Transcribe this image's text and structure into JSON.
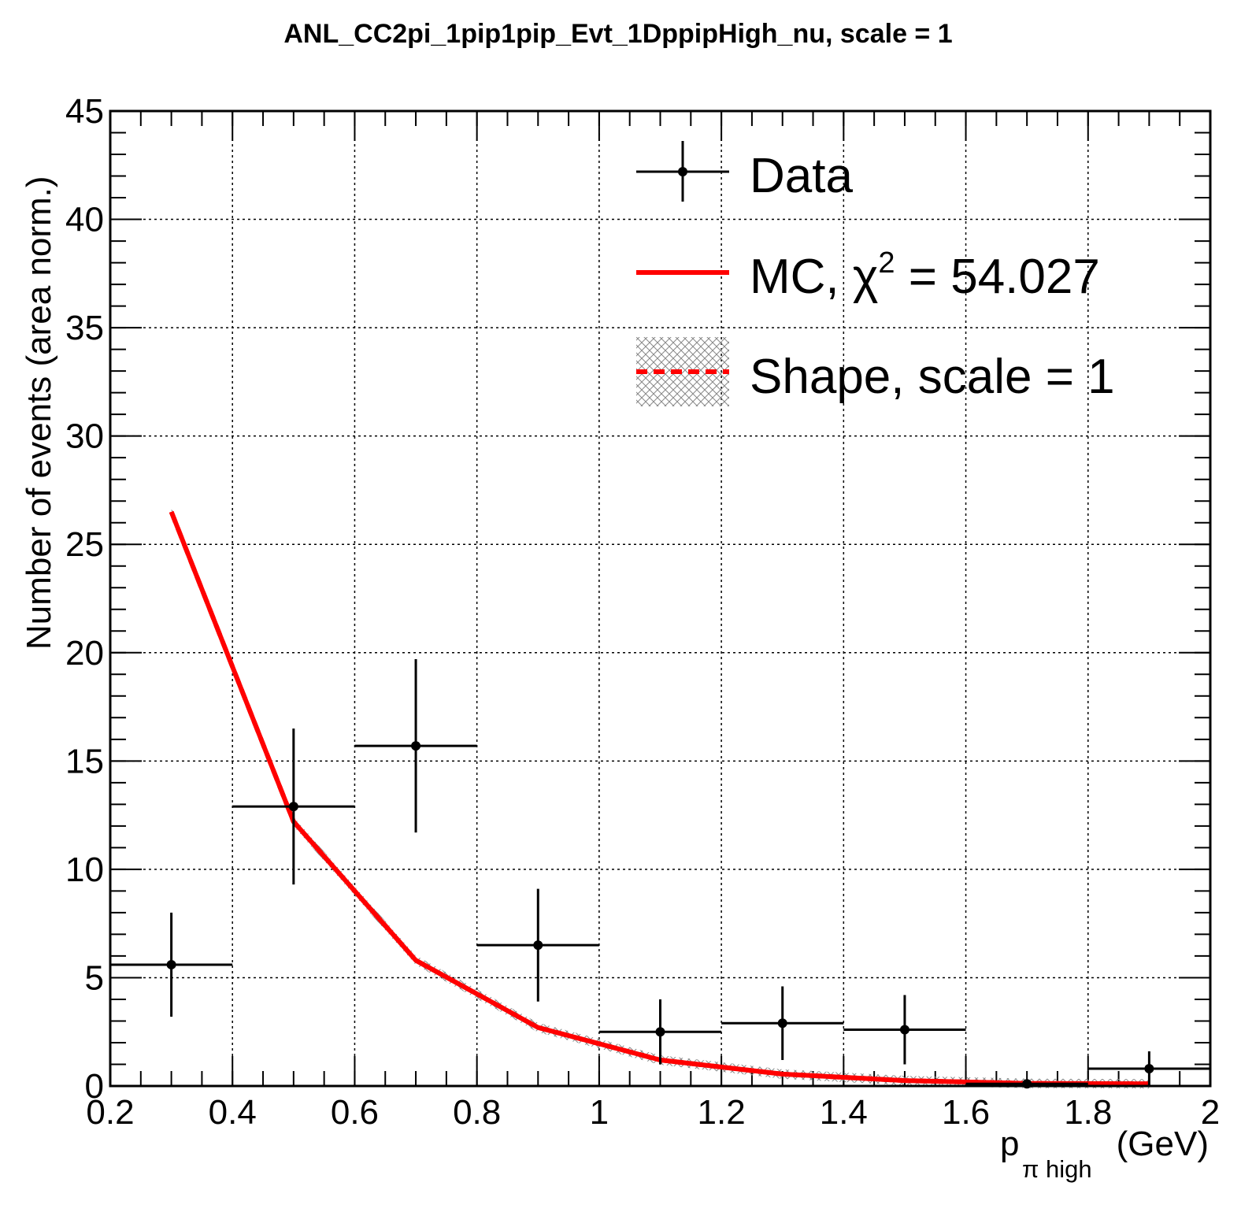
{
  "chart_data": {
    "type": "line",
    "title": "ANL_CC2pi_1pip1pip_Evt_1DppipHigh_nu, scale = 1",
    "xlabel": {
      "main": "p",
      "sub": "π high",
      "unit": "(GeV)"
    },
    "ylabel": "Number of events (area norm.)",
    "xlim": [
      0.2,
      2.0
    ],
    "ylim": [
      0,
      45
    ],
    "grid": true,
    "legend_position": "top-right",
    "x_ticks": [
      "0.2",
      "0.4",
      "0.6",
      "0.8",
      "1",
      "1.2",
      "1.4",
      "1.6",
      "1.8",
      "2"
    ],
    "y_ticks": [
      "0",
      "5",
      "10",
      "15",
      "20",
      "25",
      "30",
      "35",
      "40",
      "45"
    ],
    "series": [
      {
        "name": "Data",
        "kind": "points_with_errors",
        "color": "#000000",
        "x": [
          0.3,
          0.5,
          0.7,
          0.9,
          1.1,
          1.3,
          1.5,
          1.7,
          1.9
        ],
        "xerr": [
          0.1,
          0.1,
          0.1,
          0.1,
          0.1,
          0.1,
          0.1,
          0.1,
          0.1
        ],
        "y": [
          5.6,
          12.9,
          15.7,
          6.5,
          2.5,
          2.9,
          2.6,
          0.1,
          0.8
        ],
        "yerr": [
          2.4,
          3.6,
          4.0,
          2.6,
          1.5,
          1.7,
          1.6,
          0.1,
          0.8
        ]
      },
      {
        "name": "MC, χ² = 54.027",
        "legend_main": "MC, χ",
        "legend_sup": "2",
        "legend_tail": " = 54.027",
        "kind": "line",
        "color": "#ff0000",
        "x": [
          0.3,
          0.5,
          0.7,
          0.9,
          1.1,
          1.3,
          1.5,
          1.7,
          1.9
        ],
        "y": [
          26.5,
          12.2,
          5.8,
          2.7,
          1.2,
          0.55,
          0.25,
          0.12,
          0.1
        ]
      },
      {
        "name": "Shape, scale = 1",
        "kind": "dashed_line_with_band",
        "color": "#ff0000",
        "band_color": "#888888",
        "x": [
          0.3,
          0.5,
          0.7,
          0.9,
          1.1,
          1.3,
          1.5,
          1.7,
          1.9
        ],
        "y": [
          26.5,
          12.2,
          5.8,
          2.7,
          1.2,
          0.55,
          0.25,
          0.12,
          0.1
        ]
      }
    ]
  }
}
